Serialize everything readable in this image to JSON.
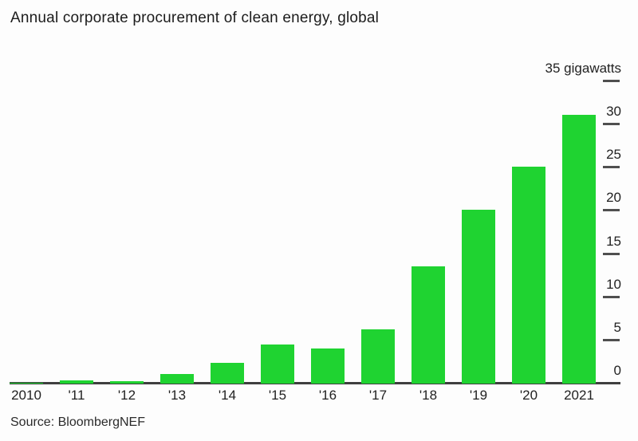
{
  "title": "Annual corporate procurement of clean energy, global",
  "source": "Source: BloombergNEF",
  "colors": {
    "bar": "#1fd331",
    "axis": "#3f3f3f",
    "tick": "#4f4f4f",
    "text": "#222222",
    "background": "#fdfdfd"
  },
  "chart_data": {
    "type": "bar",
    "title": "Annual corporate procurement of clean energy, global",
    "categories": [
      "2010",
      "'11",
      "'12",
      "'13",
      "'14",
      "'15",
      "'16",
      "'17",
      "'18",
      "'19",
      "'20",
      "2021"
    ],
    "values": [
      0.1,
      0.4,
      0.3,
      1.1,
      2.4,
      4.5,
      4.1,
      6.3,
      13.6,
      20.1,
      25.1,
      31.1
    ],
    "xlabel": "",
    "ylabel": "gigawatts",
    "ylim": [
      0,
      35
    ],
    "y_ticks": [
      0,
      5,
      10,
      15,
      20,
      25,
      30,
      35
    ],
    "y_tick_labels": [
      "0",
      "5",
      "10",
      "15",
      "20",
      "25",
      "30",
      "35 gigawatts"
    ],
    "axis_side": "right",
    "grid": false,
    "legend": "none",
    "source": "Source: BloombergNEF"
  }
}
